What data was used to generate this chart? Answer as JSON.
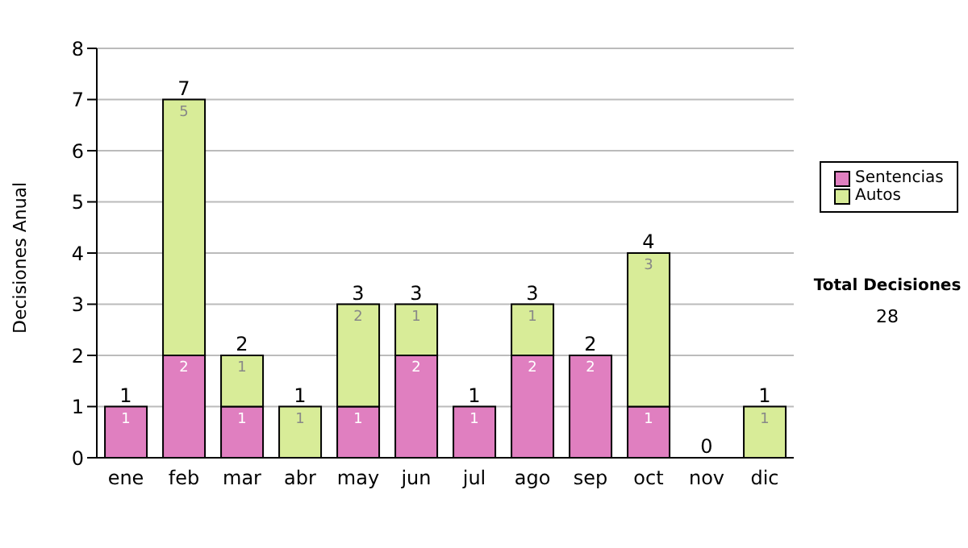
{
  "chart_data": {
    "type": "bar",
    "stacked": true,
    "ylabel": "Decisiones Anual",
    "categories": [
      "ene",
      "feb",
      "mar",
      "abr",
      "may",
      "jun",
      "jul",
      "ago",
      "sep",
      "oct",
      "nov",
      "dic"
    ],
    "series": [
      {
        "name": "Sentencias",
        "color": "#e07fc0",
        "values": [
          1,
          2,
          1,
          0,
          1,
          2,
          1,
          2,
          2,
          1,
          0,
          0
        ],
        "value_labels": [
          "1",
          "2",
          "1",
          null,
          "1",
          "2",
          "1",
          "2",
          "2",
          "1",
          null,
          null
        ]
      },
      {
        "name": "Autos",
        "color": "#d8ec98",
        "values": [
          0,
          5,
          1,
          1,
          2,
          1,
          0,
          1,
          0,
          3,
          0,
          1
        ],
        "value_labels": [
          null,
          "5",
          "1",
          "1",
          "2",
          "1",
          null,
          "1",
          null,
          "3",
          null,
          "1"
        ]
      }
    ],
    "totals": [
      "1",
      "7",
      "2",
      "1",
      "3",
      "3",
      "1",
      "3",
      "2",
      "4",
      "0",
      "1"
    ],
    "ylim": [
      0,
      8
    ],
    "yticks": [
      0,
      1,
      2,
      3,
      4,
      5,
      6,
      7,
      8
    ],
    "grid": "y",
    "legend": "right",
    "annotations": [
      "Total Decisiones",
      "28"
    ]
  }
}
